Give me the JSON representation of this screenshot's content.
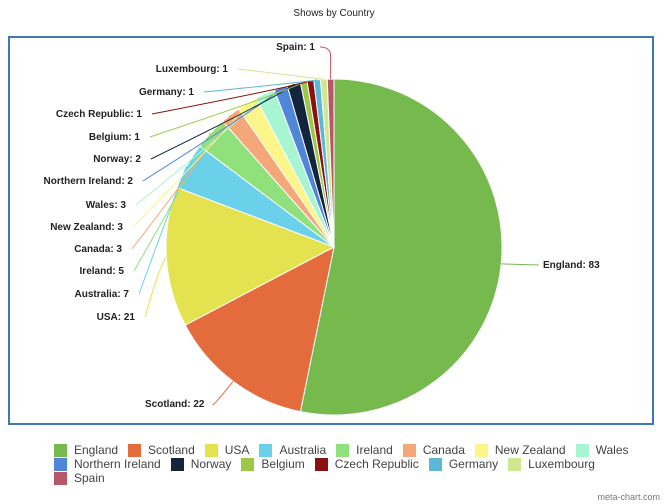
{
  "chart_data": {
    "type": "pie",
    "title": "Shows by Country",
    "categories": [
      "England",
      "Scotland",
      "USA",
      "Australia",
      "Ireland",
      "Canada",
      "New Zealand",
      "Wales",
      "Northern Ireland",
      "Norway",
      "Belgium",
      "Czech Republic",
      "Germany",
      "Luxembourg",
      "Spain"
    ],
    "values": [
      83,
      22,
      21,
      7,
      5,
      3,
      3,
      3,
      2,
      2,
      1,
      1,
      1,
      1,
      1
    ],
    "colors": [
      "#76b94d",
      "#e46c3c",
      "#e5e24f",
      "#6bd0e9",
      "#90e07c",
      "#f4a779",
      "#fbf58a",
      "#a7f5d1",
      "#4f86d8",
      "#13253d",
      "#9cc848",
      "#8b1010",
      "#5cb8d6",
      "#cfe890",
      "#b85669"
    ],
    "legend": "bottom"
  },
  "watermark": "meta-chart.com"
}
